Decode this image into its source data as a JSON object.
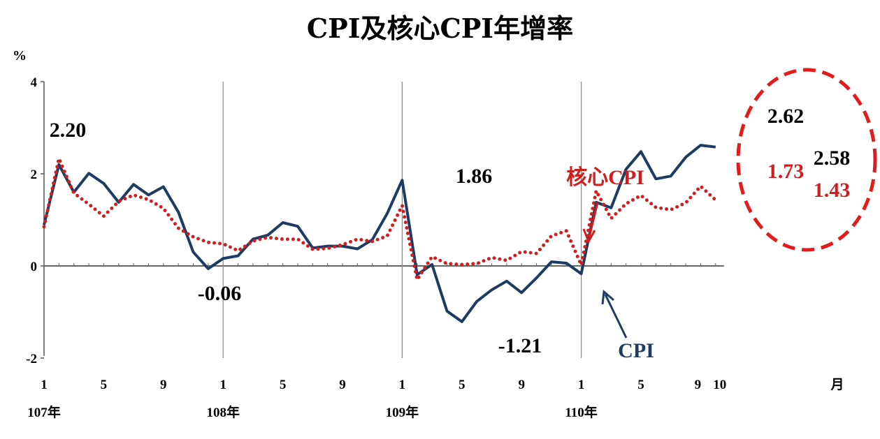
{
  "chart_data": {
    "type": "line",
    "title": "CPI及核心CPI年增率",
    "ylabel": "%",
    "xlabel": "月",
    "ylim": [
      -2,
      4
    ],
    "yticks": [
      "-2",
      "0",
      "2",
      "4"
    ],
    "grid": false,
    "x_tick_labels": [
      "1",
      "5",
      "9",
      "1",
      "5",
      "9",
      "1",
      "5",
      "9",
      "1",
      "5",
      "9",
      "10"
    ],
    "year_labels": [
      "107年",
      "108年",
      "109年",
      "110年"
    ],
    "x": [
      "107-1",
      "107-2",
      "107-3",
      "107-4",
      "107-5",
      "107-6",
      "107-7",
      "107-8",
      "107-9",
      "107-10",
      "107-11",
      "107-12",
      "108-1",
      "108-2",
      "108-3",
      "108-4",
      "108-5",
      "108-6",
      "108-7",
      "108-8",
      "108-9",
      "108-10",
      "108-11",
      "108-12",
      "109-1",
      "109-2",
      "109-3",
      "109-4",
      "109-5",
      "109-6",
      "109-7",
      "109-8",
      "109-9",
      "109-10",
      "109-11",
      "109-12",
      "110-1",
      "110-2",
      "110-3",
      "110-4",
      "110-5",
      "110-6",
      "110-7",
      "110-8",
      "110-9",
      "110-10"
    ],
    "series": [
      {
        "name": "CPI",
        "color": "#1f3b63",
        "style": "solid",
        "values": [
          0.89,
          2.2,
          1.6,
          2.01,
          1.79,
          1.38,
          1.77,
          1.54,
          1.72,
          1.17,
          0.3,
          -0.06,
          0.16,
          0.22,
          0.58,
          0.67,
          0.94,
          0.86,
          0.39,
          0.43,
          0.43,
          0.37,
          0.57,
          1.14,
          1.86,
          -0.19,
          0.03,
          -0.98,
          -1.21,
          -0.77,
          -0.52,
          -0.33,
          -0.58,
          -0.26,
          0.09,
          0.06,
          -0.17,
          1.38,
          1.26,
          2.1,
          2.48,
          1.89,
          1.95,
          2.36,
          2.62,
          2.58
        ]
      },
      {
        "name": "核心CPI",
        "color": "#d01e1e",
        "style": "dotted",
        "values": [
          0.85,
          2.33,
          1.58,
          1.34,
          1.08,
          1.4,
          1.54,
          1.44,
          1.25,
          0.82,
          0.63,
          0.51,
          0.48,
          0.33,
          0.54,
          0.62,
          0.58,
          0.58,
          0.36,
          0.38,
          0.46,
          0.58,
          0.53,
          0.65,
          1.31,
          -0.3,
          0.2,
          0.05,
          0.03,
          0.05,
          0.18,
          0.12,
          0.31,
          0.27,
          0.65,
          0.76,
          0.02,
          1.63,
          1.03,
          1.35,
          1.53,
          1.27,
          1.22,
          1.37,
          1.73,
          1.43
        ]
      }
    ],
    "annotations": {
      "cpi_2018_peak": "2.20",
      "cpi_2019_low": "-0.06",
      "cpi_2020_peak": "1.86",
      "cpi_2020_low": "-1.21",
      "cpi_sep": "2.62",
      "cpi_oct": "2.58",
      "core_sep": "1.73",
      "core_oct": "1.43",
      "core_series_label": "核心CPI",
      "cpi_series_label": "CPI"
    },
    "highlight_color": "#e31b1b"
  }
}
